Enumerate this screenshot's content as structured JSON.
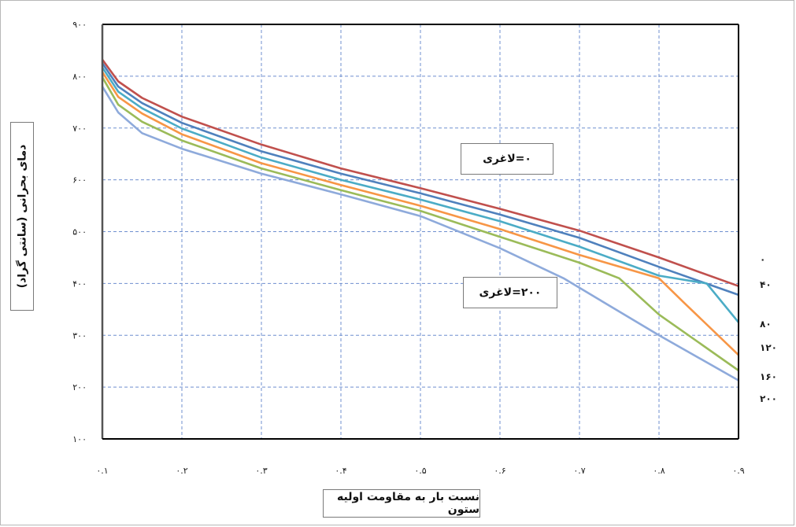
{
  "chart_data": {
    "type": "line",
    "title": "",
    "xlabel": "نسبت بار به مقاومت اولیه ستون",
    "ylabel": "دمای بحرانی (سانتی گراد)",
    "xlim": [
      0.1,
      0.9
    ],
    "ylim": [
      100,
      900
    ],
    "x_ticks": [
      0.1,
      0.2,
      0.3,
      0.4,
      0.5,
      0.6,
      0.7,
      0.8,
      0.9
    ],
    "x_tick_labels": [
      "۰.۱",
      "۰.۲",
      "۰.۳",
      "۰.۴",
      "۰.۵",
      "۰.۶",
      "۰.۷",
      "۰.۸",
      "۰.۹"
    ],
    "y_ticks": [
      100,
      200,
      300,
      400,
      500,
      600,
      700,
      800,
      900
    ],
    "y_tick_labels": [
      "۱۰۰",
      "۲۰۰",
      "۳۰۰",
      "۴۰۰",
      "۵۰۰",
      "۶۰۰",
      "۷۰۰",
      "۸۰۰",
      "۹۰۰"
    ],
    "grid": true,
    "legend": "none",
    "annotations": [
      "۰=لاغری",
      "۲۰۰=لاغری"
    ],
    "series": [
      {
        "name": "۰",
        "color": "#c0504d",
        "x": [
          0.1,
          0.12,
          0.15,
          0.2,
          0.3,
          0.4,
          0.5,
          0.6,
          0.7,
          0.8,
          0.9
        ],
        "y": [
          832,
          790,
          758,
          722,
          668,
          622,
          584,
          544,
          502,
          450,
          395
        ]
      },
      {
        "name": "۴۰",
        "color": "#4f81bd",
        "x": [
          0.1,
          0.12,
          0.15,
          0.2,
          0.3,
          0.4,
          0.5,
          0.6,
          0.7,
          0.8,
          0.9
        ],
        "y": [
          825,
          780,
          748,
          710,
          655,
          612,
          574,
          533,
          488,
          432,
          378
        ]
      },
      {
        "name": "۸۰",
        "color": "#4bacc6",
        "x": [
          0.1,
          0.12,
          0.15,
          0.2,
          0.3,
          0.4,
          0.5,
          0.6,
          0.7,
          0.8,
          0.86,
          0.9
        ],
        "y": [
          817,
          770,
          738,
          699,
          643,
          600,
          562,
          520,
          471,
          415,
          400,
          325
        ]
      },
      {
        "name": "۱۲۰",
        "color": "#f79646",
        "x": [
          0.1,
          0.12,
          0.15,
          0.2,
          0.3,
          0.4,
          0.5,
          0.6,
          0.7,
          0.8,
          0.83,
          0.9
        ],
        "y": [
          808,
          760,
          728,
          688,
          632,
          590,
          550,
          505,
          455,
          410,
          365,
          262
        ]
      },
      {
        "name": "۱۶۰",
        "color": "#9bbb59",
        "x": [
          0.1,
          0.12,
          0.15,
          0.2,
          0.3,
          0.4,
          0.5,
          0.6,
          0.7,
          0.75,
          0.8,
          0.9
        ],
        "y": [
          798,
          745,
          712,
          676,
          622,
          580,
          540,
          490,
          440,
          410,
          340,
          232
        ]
      },
      {
        "name": "۲۰۰",
        "color": "#8eaadb",
        "x": [
          0.1,
          0.12,
          0.15,
          0.2,
          0.3,
          0.4,
          0.5,
          0.6,
          0.68,
          0.8,
          0.9
        ],
        "y": [
          780,
          730,
          690,
          660,
          612,
          572,
          530,
          468,
          410,
          300,
          213
        ]
      }
    ]
  }
}
